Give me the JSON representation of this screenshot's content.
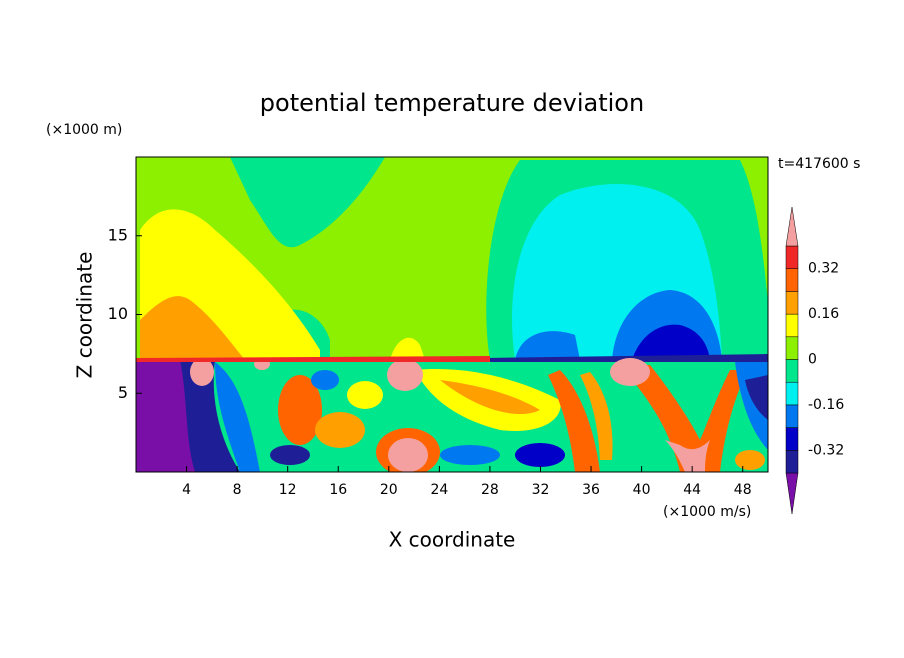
{
  "chart_data": {
    "type": "contour",
    "title": "potential temperature deviation",
    "y_unit": "(×1000 m)",
    "x_unit": "(×1000 m/s)",
    "time_label": "t=417600 s",
    "xlabel": "X coordinate",
    "ylabel": "Z coordinate",
    "xlim": [
      0,
      50
    ],
    "xticks": [
      4,
      8,
      12,
      16,
      20,
      24,
      28,
      32,
      36,
      40,
      44,
      48
    ],
    "ylim": [
      0,
      20
    ],
    "yticks": [
      5,
      10,
      15
    ],
    "colorbar": {
      "levels": [
        -0.4,
        -0.32,
        -0.24,
        -0.16,
        -0.08,
        0,
        0.08,
        0.16,
        0.24,
        0.32,
        0.4
      ],
      "colors": [
        "#7a0fa8",
        "#1e1e96",
        "#0000c8",
        "#0078f0",
        "#00f0f0",
        "#00e68c",
        "#8cf000",
        "#ffff00",
        "#ffa000",
        "#ff6400",
        "#f02828",
        "#f5a0a0"
      ],
      "ticks": [
        -0.32,
        -0.16,
        0,
        0.16,
        0.32
      ]
    }
  }
}
